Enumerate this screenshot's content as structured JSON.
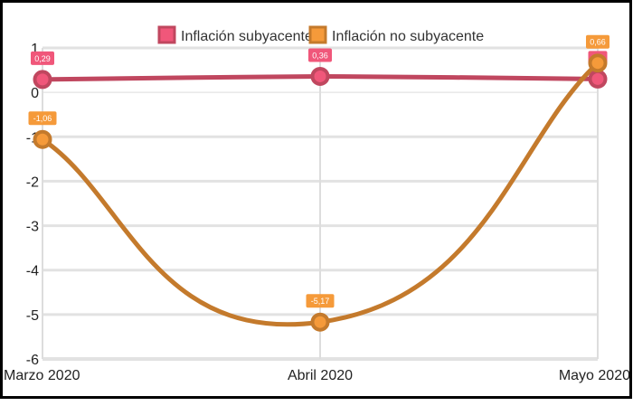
{
  "chart_data": {
    "type": "line",
    "title": "",
    "xlabel": "",
    "ylabel": "",
    "categories": [
      "Marzo 2020",
      "Abril 2020",
      "Mayo 2020"
    ],
    "ylim": [
      -6,
      1
    ],
    "yticks": [
      1,
      0,
      -1,
      -2,
      -3,
      -4,
      -5,
      -6
    ],
    "grid": true,
    "legend_position": "top",
    "smooth": true,
    "series": [
      {
        "name": "Inflación subyacente",
        "values": [
          0.29,
          0.36,
          0.3
        ],
        "labels": [
          "0,29",
          "0,36",
          "0,3"
        ],
        "color": "#c0475f",
        "fill": "#f0577a"
      },
      {
        "name": "Inflación no subyacente",
        "values": [
          -1.06,
          -5.17,
          0.66
        ],
        "labels": [
          "-1,06",
          "-5,17",
          "0,66"
        ],
        "color": "#c47a2c",
        "fill": "#f59a3a"
      }
    ]
  }
}
